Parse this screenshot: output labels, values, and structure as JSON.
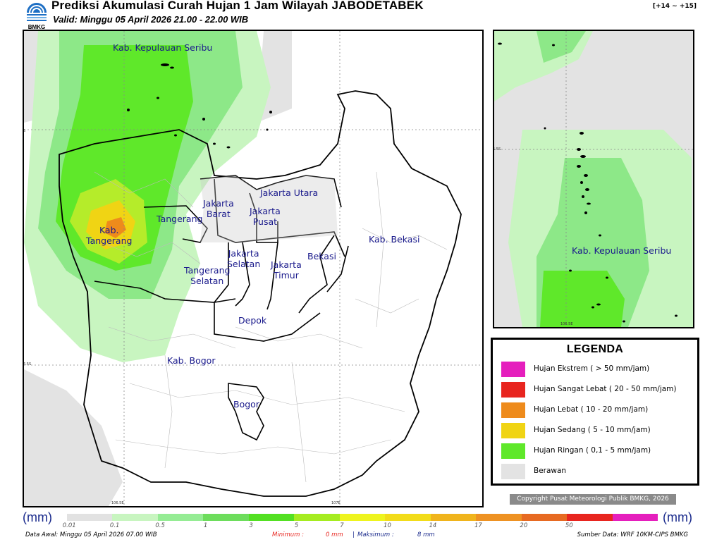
{
  "header": {
    "title": "Prediksi Akumulasi Curah Hujan 1 Jam Wilayah JABODETABEK",
    "valid": "Valid: Minggu 05 April 2026 21.00 - 22.00 WIB",
    "range": "[+14 ~ +15]",
    "logo_text": "BMKG"
  },
  "main_map": {
    "labels": [
      {
        "id": "kep-seribu",
        "text": "Kab. Kepulauan Seribu"
      },
      {
        "id": "jakarta-utara",
        "text": "Jakarta Utara"
      },
      {
        "id": "jakarta-barat",
        "text": "Jakarta\nBarat"
      },
      {
        "id": "jakarta-pusat",
        "text": "Jakarta\nPusat"
      },
      {
        "id": "tangerang",
        "text": "Tangerang"
      },
      {
        "id": "kab-tangerang",
        "text": "Kab.\nTangerang"
      },
      {
        "id": "jakarta-selatan",
        "text": "Jakarta\nSelatan"
      },
      {
        "id": "jakarta-timur",
        "text": "Jakarta\nTimur"
      },
      {
        "id": "bekasi",
        "text": "Bekasi"
      },
      {
        "id": "kab-bekasi",
        "text": "Kab. Bekasi"
      },
      {
        "id": "tangerang-selatan",
        "text": "Tangerang\nSelatan"
      },
      {
        "id": "depok",
        "text": "Depok"
      },
      {
        "id": "kab-bogor",
        "text": "Kab. Bogor"
      },
      {
        "id": "bogor",
        "text": "Bogor"
      }
    ],
    "coords": {
      "lat1": "6S",
      "lat2": "6.5S",
      "lon1": "106.5E",
      "lon2": "107E"
    }
  },
  "inset_map": {
    "label": "Kab. Kepulauan Seribu",
    "coords": {
      "lat": "5.5S",
      "lon": "106.5E"
    }
  },
  "legend": {
    "title": "LEGENDA",
    "items": [
      {
        "label": "Hujan Ekstrem ( > 50 mm/jam)",
        "color": "#e51fbd"
      },
      {
        "label": "Hujan Sangat Lebat ( 20 - 50 mm/jam)",
        "color": "#e8251f"
      },
      {
        "label": "Hujan Lebat ( 10 - 20 mm/jam)",
        "color": "#ee8b1c"
      },
      {
        "label": "Hujan Sedang ( 5 - 10 mm/jam)",
        "color": "#f0d414"
      },
      {
        "label": "Hujan Ringan ( 0,1 - 5 mm/jam)",
        "color": "#5fe82a"
      },
      {
        "label": "Berawan",
        "color": "#e3e3e3"
      }
    ]
  },
  "copyright": "Copyright Pusat Meteorologi Publik BMKG, 2026",
  "scale": {
    "unit": "(mm)",
    "ticks": [
      "0.01",
      "0.1",
      "0.5",
      "1",
      "3",
      "5",
      "7",
      "10",
      "14",
      "17",
      "20",
      "50"
    ],
    "colors": [
      "#e2e2e2",
      "#c8f5c0",
      "#95ec94",
      "#6ddd5c",
      "#53e023",
      "#a5ec20",
      "#eef41e",
      "#f2dc1a",
      "#f0b41c",
      "#ee9223",
      "#e76a22",
      "#e8251f",
      "#e51fbd"
    ]
  },
  "footer": {
    "data_awal": "Data Awal: Minggu 05 April 2026 07.00 WIB",
    "minimum_label": "Minimum :",
    "minimum_value": "0 mm",
    "separator": "|",
    "maximum_label": "Maksimum :",
    "maximum_value": "8 mm",
    "source": "Sumber Data: WRF 10KM-CIPS BMKG"
  },
  "colors": {
    "light_green": "#c8f5c0",
    "mid_green": "#8de888",
    "green": "#5fe82a",
    "yellow": "#f0d414",
    "orange": "#ee8b1c",
    "cloudy": "#e3e3e3",
    "label": "#1a1a8c"
  }
}
